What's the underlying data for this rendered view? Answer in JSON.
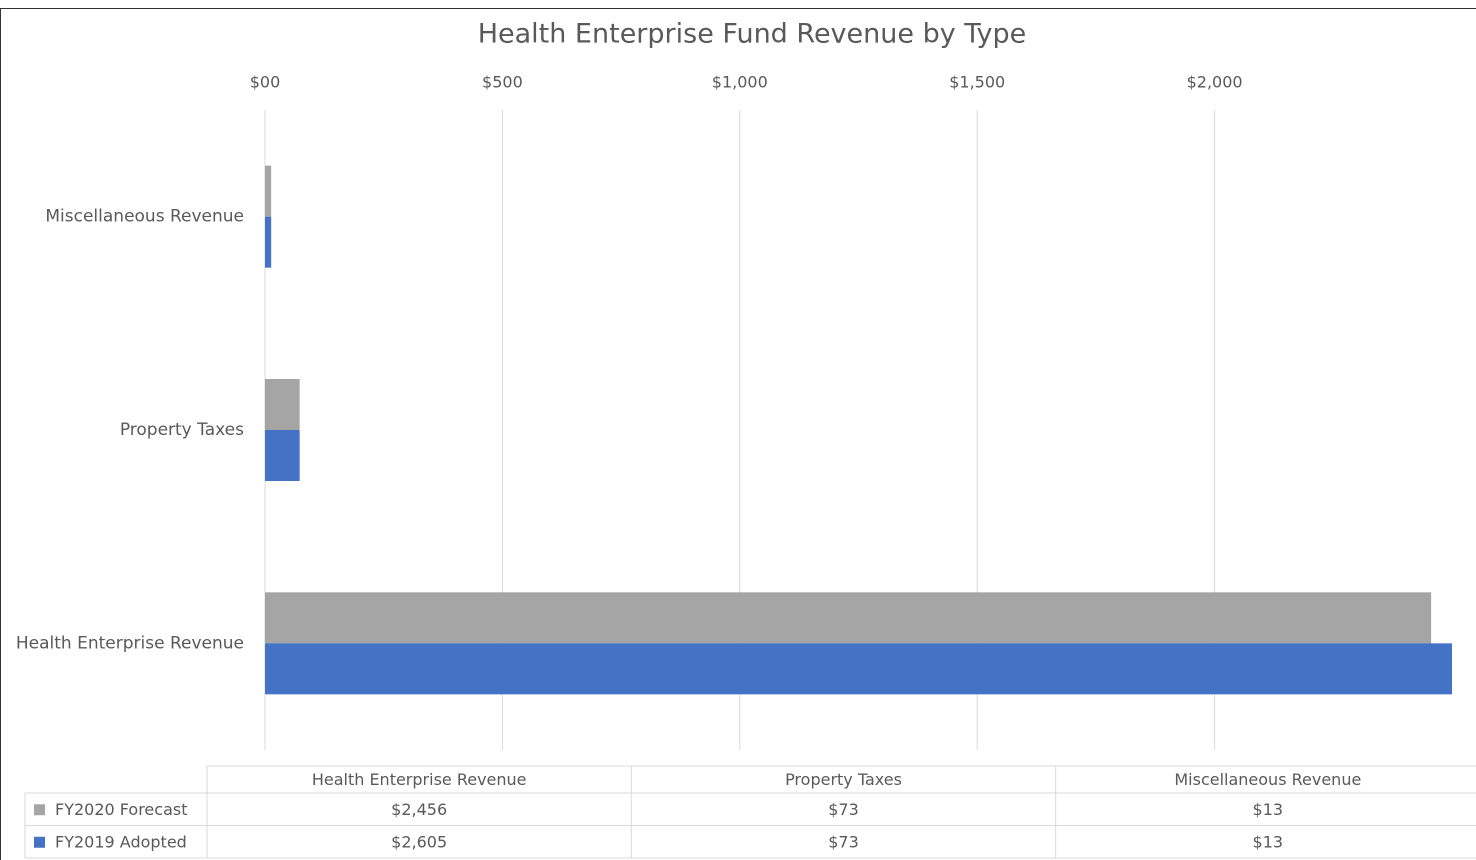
{
  "chart_data": {
    "type": "hbar",
    "title": "Health Enterprise Fund Revenue by Type",
    "categories": [
      "Health Enterprise Revenue",
      "Property Taxes",
      "Miscellaneous Revenue"
    ],
    "series": [
      {
        "name": "FY2020 Forecast",
        "color": "#a5a5a5",
        "values": [
          2456,
          73,
          13
        ],
        "value_labels": [
          "$2,456",
          "$73",
          "$13"
        ]
      },
      {
        "name": "FY2019 Adopted",
        "color": "#4472c4",
        "values": [
          2605,
          73,
          13
        ],
        "value_labels": [
          "$2,605",
          "$73",
          "$13"
        ]
      }
    ],
    "xlim": [
      0,
      2500
    ],
    "xticks": [
      {
        "value": 0,
        "label": "$00"
      },
      {
        "value": 500,
        "label": "$500"
      },
      {
        "value": 1000,
        "label": "$1,000"
      },
      {
        "value": 1500,
        "label": "$1,500"
      },
      {
        "value": 2000,
        "label": "$2,000"
      }
    ],
    "grid": true,
    "axis_position": "top",
    "data_table": true
  }
}
